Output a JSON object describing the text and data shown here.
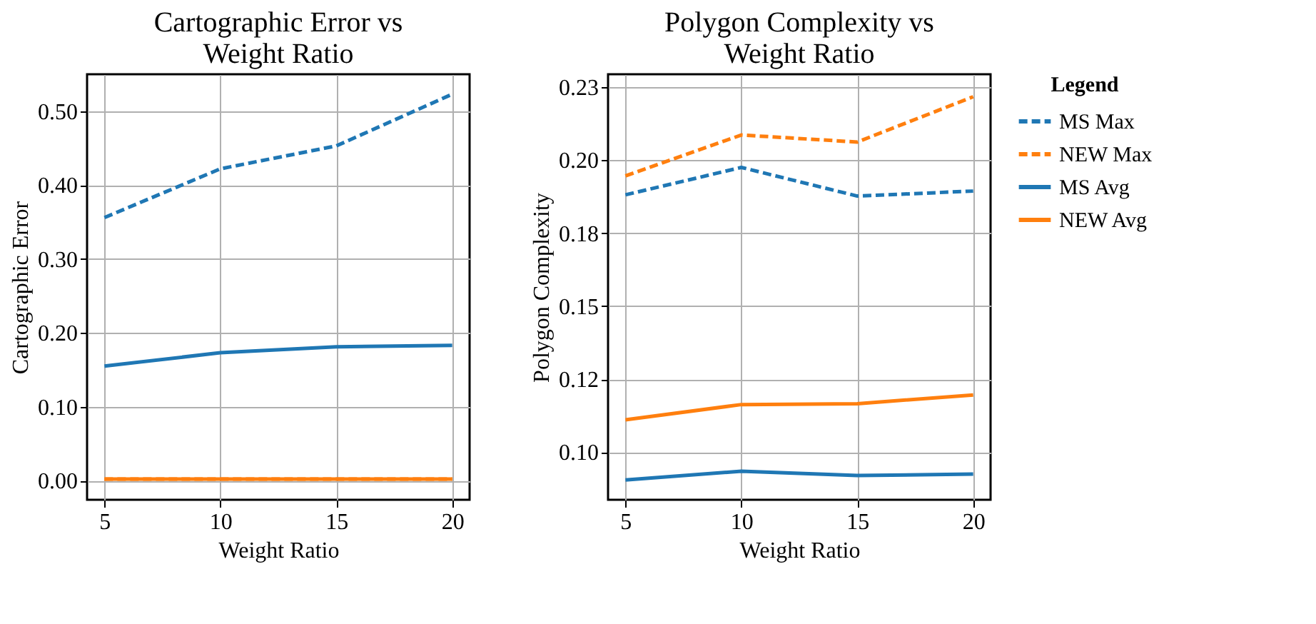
{
  "chart_data": [
    {
      "type": "line",
      "title": "Cartographic Error vs Weight Ratio",
      "xlabel": "Weight Ratio",
      "ylabel": "Cartographic Error",
      "x": [
        5,
        10,
        15,
        20
      ],
      "series": [
        {
          "color": "#1f77b4",
          "line_style": "dashed",
          "values": [
            0.356,
            0.422,
            0.453,
            0.523
          ]
        },
        {
          "color": "#ff7f0e",
          "line_style": "dashed",
          "values": [
            0.002,
            0.002,
            0.002,
            0.002
          ]
        },
        {
          "color": "#1f77b4",
          "line_style": "solid",
          "values": [
            0.155,
            0.173,
            0.181,
            0.183
          ]
        },
        {
          "color": "#ff7f0e",
          "line_style": "solid",
          "values": [
            0.002,
            0.002,
            0.002,
            0.002
          ]
        }
      ],
      "xlim": [
        4.25,
        20.75
      ],
      "xticks": [
        5,
        10,
        15,
        20
      ],
      "ylim": [
        -0.026,
        0.55
      ],
      "yticks": [
        {
          "value": 0,
          "label": "0.00"
        },
        {
          "value": 0.1,
          "label": "0.10"
        },
        {
          "value": 0.2,
          "label": "0.20"
        },
        {
          "value": 0.3,
          "label": "0.30"
        },
        {
          "value": 0.4,
          "label": "0.40"
        },
        {
          "value": 0.5,
          "label": "0.50"
        }
      ],
      "grid": true,
      "marker": "none"
    },
    {
      "type": "line",
      "title": "Polygon Complexity vs Weight Ratio",
      "xlabel": "Weight Ratio",
      "ylabel": "Polygon Complexity",
      "legend_title": "Legend",
      "x": [
        5,
        10,
        15,
        20
      ],
      "series": [
        {
          "name": "MS Max",
          "color": "#1f77b4",
          "line_style": "dashed",
          "values": [
            0.1881,
            0.1975,
            0.1877,
            0.1894
          ]
        },
        {
          "name": "NEW Max",
          "color": "#ff7f0e",
          "line_style": "dashed",
          "values": [
            0.1946,
            0.2086,
            0.2062,
            0.2217
          ]
        },
        {
          "name": "MS Avg",
          "color": "#1f77b4",
          "line_style": "solid",
          "values": [
            0.0905,
            0.0935,
            0.092,
            0.0925
          ]
        },
        {
          "name": "NEW Avg",
          "color": "#ff7f0e",
          "line_style": "solid",
          "values": [
            0.1111,
            0.1163,
            0.1166,
            0.1196
          ]
        }
      ],
      "xlim": [
        4.25,
        20.75
      ],
      "xticks": [
        5,
        10,
        15,
        20
      ],
      "ylim": [
        0.0837,
        0.2294
      ],
      "yticks": [
        {
          "value": 0.1,
          "label": "0.10"
        },
        {
          "value": 0.125,
          "label": "0.12"
        },
        {
          "value": 0.15,
          "label": "0.15"
        },
        {
          "value": 0.175,
          "label": "0.18"
        },
        {
          "value": 0.2,
          "label": "0.20"
        },
        {
          "value": 0.225,
          "label": "0.23"
        }
      ],
      "grid": true,
      "legend": "right",
      "marker": "none"
    }
  ]
}
